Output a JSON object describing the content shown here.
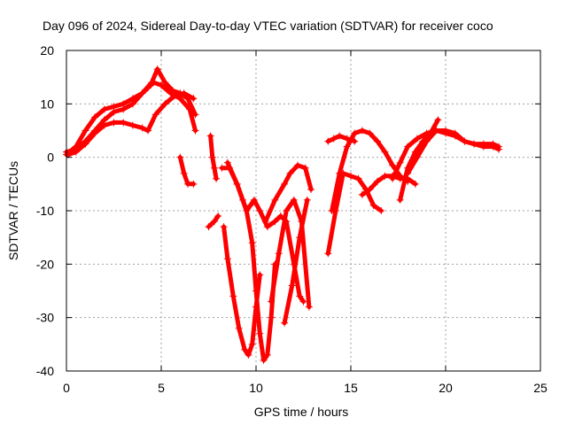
{
  "chart_data": {
    "type": "scatter",
    "title": "Day 096 of 2024, Sidereal Day-to-day VTEC variation (SDTVAR) for receiver coco",
    "xlabel": "GPS time / hours",
    "ylabel": "SDTVAR / TECUs",
    "xlim": [
      0,
      25
    ],
    "ylim": [
      -40,
      20
    ],
    "xticks": [
      0,
      5,
      10,
      15,
      20,
      25
    ],
    "yticks": [
      -40,
      -30,
      -20,
      -10,
      0,
      10,
      20
    ],
    "grid": true,
    "marker": "+",
    "color": "#ff0000",
    "series": [
      {
        "x": [
          0.0,
          0.5,
          1.0,
          1.5,
          2.0,
          2.5,
          3.0,
          3.5,
          4.0,
          4.5,
          4.8,
          5.2,
          5.6,
          6.0,
          6.4,
          6.8
        ],
        "y": [
          0.5,
          2.0,
          5.0,
          7.5,
          9.0,
          9.5,
          10.0,
          11.0,
          12.0,
          14.0,
          16.5,
          14.0,
          12.5,
          12.0,
          11.0,
          8.0
        ]
      },
      {
        "x": [
          0.0,
          0.5,
          1.0,
          1.5,
          2.0,
          2.5,
          3.0,
          3.5,
          4.0,
          4.3,
          4.6,
          5.0,
          5.5,
          6.0,
          6.5,
          6.8
        ],
        "y": [
          1.0,
          1.5,
          3.0,
          5.0,
          7.0,
          8.5,
          9.0,
          10.0,
          12.0,
          13.0,
          14.0,
          13.5,
          12.0,
          11.0,
          9.0,
          5.0
        ]
      },
      {
        "x": [
          0.1,
          0.5,
          1.0,
          1.5,
          2.0,
          2.5,
          3.0,
          3.5,
          4.0,
          4.3
        ],
        "y": [
          0.5,
          1.0,
          2.5,
          4.5,
          6.0,
          6.5,
          6.5,
          6.0,
          5.5,
          5.0
        ]
      },
      {
        "x": [
          4.3,
          4.7,
          5.2,
          5.7,
          6.2,
          6.7
        ],
        "y": [
          5.0,
          8.0,
          10.0,
          11.5,
          12.0,
          11.0
        ]
      },
      {
        "x": [
          6.0,
          6.2,
          6.4,
          6.7
        ],
        "y": [
          0.0,
          -3.0,
          -5.0,
          -5.0
        ]
      },
      {
        "x": [
          7.6,
          7.7,
          7.8,
          7.9
        ],
        "y": [
          4.0,
          0.0,
          -2.0,
          -4.0
        ]
      },
      {
        "x": [
          7.5,
          7.8,
          8.0
        ],
        "y": [
          -13.0,
          -12.0,
          -11.0
        ]
      },
      {
        "x": [
          8.2,
          8.6,
          9.0,
          9.3,
          9.5,
          9.7,
          9.9,
          10.2,
          10.6,
          11.0,
          11.3,
          11.6,
          12.0,
          12.3,
          12.5
        ],
        "y": [
          -2.0,
          -2.0,
          -5.0,
          -8.0,
          -10.0,
          -9.0,
          -8.0,
          -10.0,
          -13.0,
          -12.0,
          -11.0,
          -12.0,
          -20.0,
          -26.0,
          -27.0
        ]
      },
      {
        "x": [
          8.3,
          8.5,
          8.8,
          9.1,
          9.4,
          9.6,
          9.8,
          10.0,
          10.2
        ],
        "y": [
          -13.0,
          -19.0,
          -26.0,
          -32.0,
          -36.0,
          -37.0,
          -35.0,
          -28.0,
          -22.0
        ]
      },
      {
        "x": [
          8.5,
          9.0,
          9.5,
          9.8,
          10.0,
          10.2,
          10.4,
          10.6,
          10.8,
          11.0
        ],
        "y": [
          -1.0,
          -5.0,
          -10.0,
          -16.0,
          -25.0,
          -33.0,
          -38.0,
          -37.0,
          -30.0,
          -20.0
        ]
      },
      {
        "x": [
          10.8,
          11.2,
          11.6,
          12.0,
          12.4,
          12.8
        ],
        "y": [
          -27.0,
          -18.0,
          -10.0,
          -8.0,
          -12.0,
          -28.0
        ]
      },
      {
        "x": [
          10.5,
          11.0,
          11.5,
          11.8,
          12.2,
          12.6,
          12.9
        ],
        "y": [
          -12.0,
          -8.0,
          -5.0,
          -3.0,
          -1.5,
          -2.0,
          -6.0
        ]
      },
      {
        "x": [
          11.5,
          11.9,
          12.3,
          12.7
        ],
        "y": [
          -31.0,
          -24.0,
          -15.0,
          -8.0
        ]
      },
      {
        "x": [
          13.8,
          14.2,
          14.6,
          15.0,
          15.4,
          15.8,
          16.2,
          16.6
        ],
        "y": [
          -18.0,
          -10.0,
          -3.0,
          -3.5,
          -4.0,
          -6.0,
          -9.0,
          -10.0
        ]
      },
      {
        "x": [
          13.8,
          14.1,
          14.4,
          14.8,
          15.2
        ],
        "y": [
          3.0,
          3.5,
          4.0,
          3.5,
          3.0
        ]
      },
      {
        "x": [
          14.0,
          14.4,
          14.8,
          15.2,
          15.6,
          16.0,
          16.4,
          16.8,
          17.2,
          17.6,
          18.0
        ],
        "y": [
          -10.0,
          -3.0,
          2.0,
          4.5,
          5.0,
          4.5,
          3.0,
          1.0,
          -1.5,
          -3.5,
          -4.5
        ]
      },
      {
        "x": [
          15.6,
          16.0,
          16.4,
          16.8,
          17.2,
          17.6,
          18.0,
          18.4
        ],
        "y": [
          -7.0,
          -6.0,
          -4.5,
          -3.5,
          -3.5,
          -4.0,
          -4.0,
          -5.0
        ]
      },
      {
        "x": [
          17.6,
          18.0,
          18.4,
          18.8,
          19.2,
          19.6
        ],
        "y": [
          -8.0,
          -2.0,
          1.0,
          3.0,
          4.5,
          7.0
        ]
      },
      {
        "x": [
          18.0,
          18.5,
          19.0,
          19.5,
          20.0,
          20.5,
          21.0,
          21.5,
          22.0,
          22.5,
          22.8
        ],
        "y": [
          -3.0,
          0.0,
          3.0,
          5.0,
          5.0,
          4.5,
          3.0,
          2.5,
          2.0,
          2.0,
          1.5
        ]
      },
      {
        "x": [
          17.2,
          17.6,
          18.0,
          18.5,
          19.0,
          19.5,
          20.0,
          20.5,
          21.0,
          21.5,
          22.0,
          22.5,
          22.8
        ],
        "y": [
          -4.0,
          -1.0,
          2.0,
          3.5,
          4.5,
          5.0,
          4.5,
          4.0,
          3.0,
          2.5,
          2.5,
          2.5,
          2.0
        ]
      }
    ]
  }
}
